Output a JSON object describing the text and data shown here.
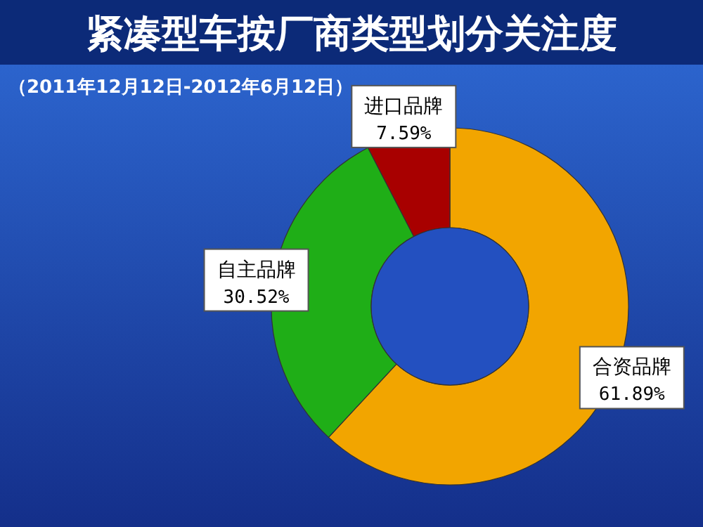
{
  "chart_data": {
    "type": "donut",
    "title": "紧凑型车按厂商类型划分关注度",
    "subtitle": "（2011年12月12日-2012年6月12日）",
    "categories": [
      "合资品牌",
      "自主品牌",
      "进口品牌"
    ],
    "values": [
      61.89,
      30.52,
      7.59
    ],
    "value_labels": [
      "61.89%",
      "30.52%",
      "7.59%"
    ],
    "colors": [
      "#f2a500",
      "#1fae17",
      "#a80000"
    ]
  }
}
